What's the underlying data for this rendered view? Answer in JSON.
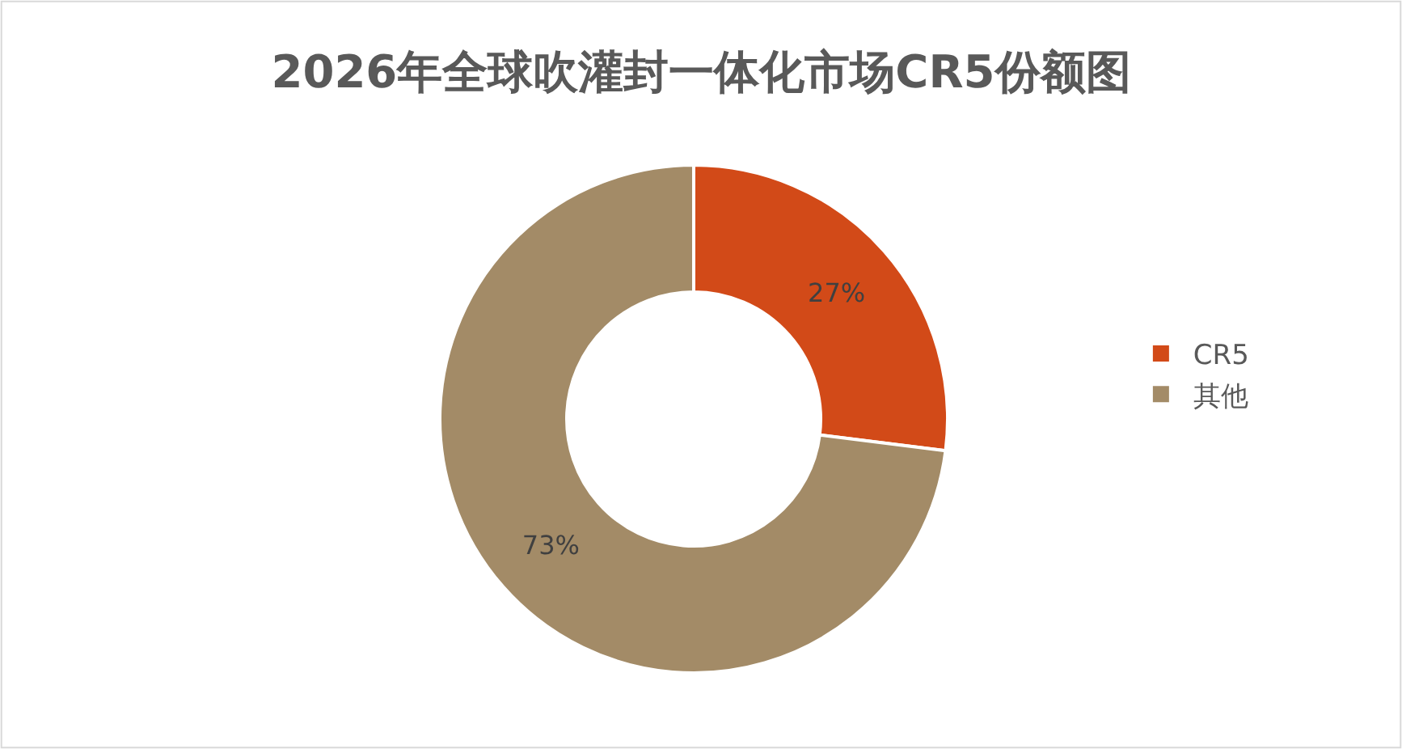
{
  "chart_data": {
    "type": "donut",
    "title": "2026年全球吹灌封一体化市场CR5份额图",
    "categories": [
      "CR5",
      "其他"
    ],
    "values": [
      27,
      73
    ],
    "colors": [
      "#d24a18",
      "#a38b67"
    ],
    "value_labels": [
      "27%",
      "73%"
    ],
    "legend": "right"
  }
}
